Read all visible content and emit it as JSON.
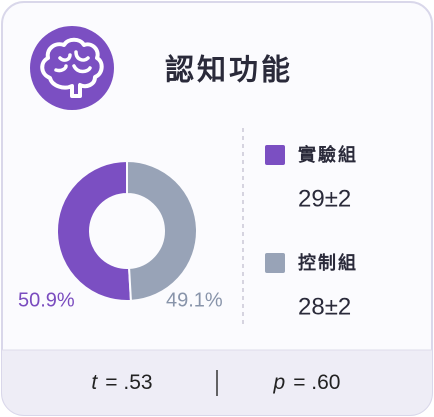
{
  "chart_data": {
    "type": "pie",
    "title": "認知功能",
    "categories": [
      "實驗組",
      "控制組"
    ],
    "values": [
      50.9,
      49.1
    ],
    "value_labels": [
      "50.9%",
      "49.1%"
    ],
    "colors": [
      "#7b4fc2",
      "#98a3b7"
    ],
    "group_values": [
      "29±2",
      "28±2"
    ],
    "footer": [
      {
        "symbol": "t",
        "text": "= .53"
      },
      {
        "symbol": "p",
        "text": "= .60"
      }
    ]
  }
}
